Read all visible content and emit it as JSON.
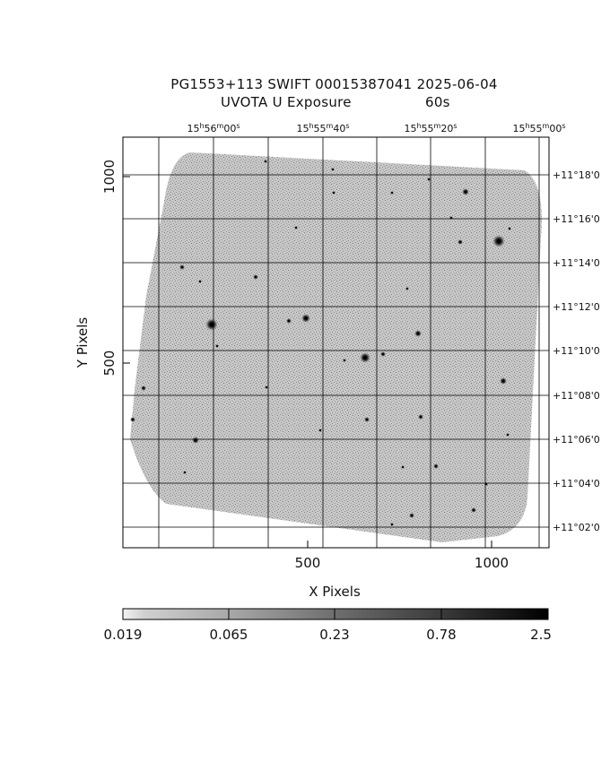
{
  "title": {
    "line1": "PG1553+113 SWIFT 00015387041 2025-06-04",
    "line2_label": "UVOTA U Exposure",
    "line2_time": "60s"
  },
  "axes": {
    "x_label": "X Pixels",
    "y_label": "Y Pixels",
    "x_ticks": [
      "500",
      "1000"
    ],
    "y_ticks": [
      "500",
      "1000"
    ],
    "ra_ticks": [
      {
        "h": "15",
        "m": "56",
        "s": "00"
      },
      {
        "h": "15",
        "m": "55",
        "s": "40"
      },
      {
        "h": "15",
        "m": "55",
        "s": "20"
      },
      {
        "h": "15",
        "m": "55",
        "s": "00"
      }
    ],
    "dec_ticks": [
      "+11°18'0",
      "+11°16'0",
      "+11°14'0",
      "+11°12'0",
      "+11°10'0",
      "+11°08'0",
      "+11°06'0",
      "+11°04'0",
      "+11°02'0"
    ]
  },
  "colorbar": {
    "scale": "log",
    "ticks": [
      "0.019",
      "0.065",
      "0.23",
      "0.78",
      "2.5"
    ]
  },
  "colors": {
    "background": "#ffffff",
    "image_noise": "#9a9a9a",
    "grid": "#000000"
  }
}
